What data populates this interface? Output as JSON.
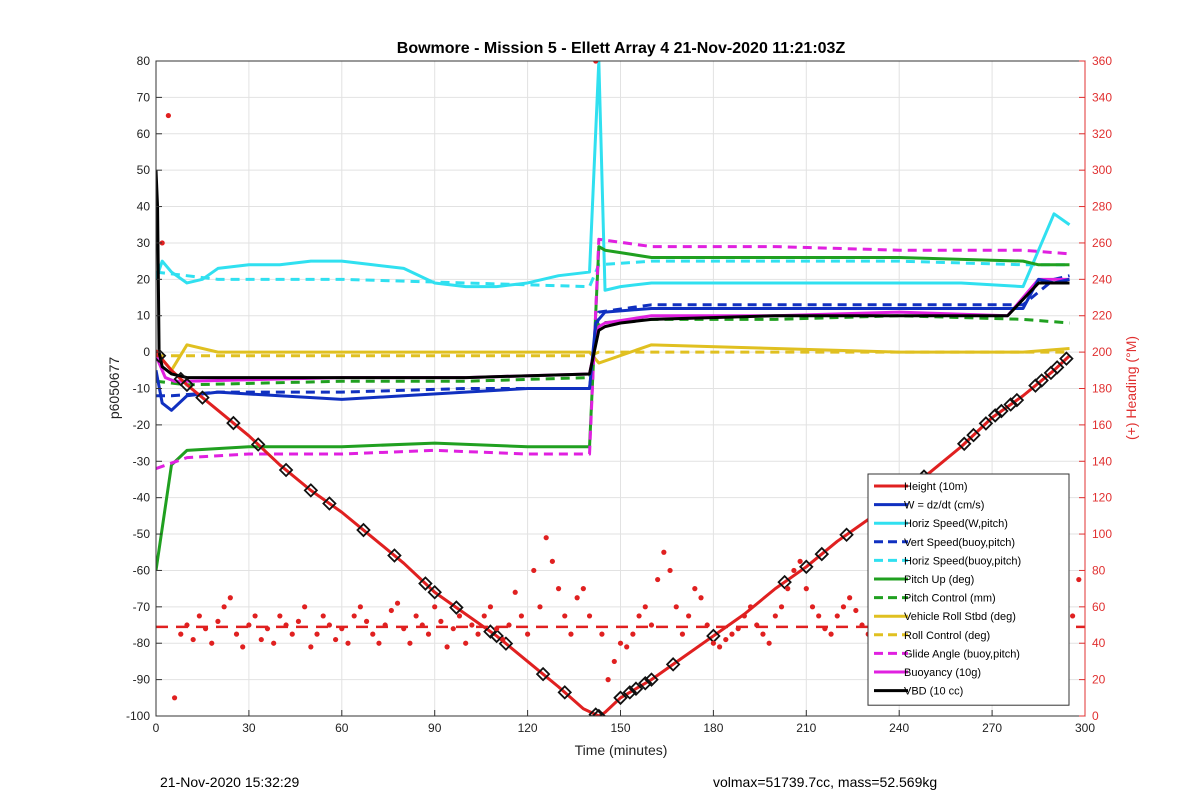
{
  "footer": {
    "timestamp": "21-Nov-2020 15:32:29",
    "stats": "volmax=51739.7cc, mass=52.569kg"
  },
  "chart_data": {
    "type": "line",
    "title": "Bowmore - Mission 5 - Ellett Array 4 21-Nov-2020 11:21:03Z",
    "xlabel": "Time (minutes)",
    "ylabel": "p6050677",
    "y2label": "(+) Heading (°M)",
    "xlim": [
      0,
      300
    ],
    "ylim": [
      -100,
      80
    ],
    "y2lim": [
      0,
      360
    ],
    "xticks": [
      0,
      30,
      60,
      90,
      120,
      150,
      180,
      210,
      240,
      270,
      300
    ],
    "yticks": [
      -100,
      -90,
      -80,
      -70,
      -60,
      -50,
      -40,
      -30,
      -20,
      -10,
      0,
      10,
      20,
      30,
      40,
      50,
      60,
      70,
      80
    ],
    "y2ticks": [
      0,
      20,
      40,
      60,
      80,
      100,
      120,
      140,
      160,
      180,
      200,
      220,
      240,
      260,
      280,
      300,
      320,
      340,
      360
    ],
    "grid": true,
    "legend_position": "lower-right",
    "series": [
      {
        "name": "Height (10m)",
        "color": "#e02020",
        "style": "solid",
        "width": 3,
        "x": [
          0,
          1,
          5,
          10,
          20,
          30,
          40,
          50,
          60,
          70,
          80,
          90,
          100,
          110,
          120,
          130,
          138,
          143,
          145,
          150,
          160,
          170,
          180,
          190,
          200,
          210,
          220,
          230,
          240,
          250,
          260,
          270,
          280,
          290,
          295
        ],
        "y": [
          -1,
          -1,
          -5,
          -9,
          -16,
          -23,
          -31,
          -38,
          -44,
          -51,
          -58,
          -66,
          -72,
          -78,
          -85,
          -92,
          -98,
          -100,
          -99,
          -95,
          -90,
          -84,
          -78,
          -72,
          -65,
          -59,
          -52,
          -46,
          -39,
          -33,
          -26,
          -18,
          -12,
          -5,
          -1
        ]
      },
      {
        "name": "W = dz/dt (cm/s)",
        "color": "#1030c0",
        "style": "solid",
        "width": 3,
        "x": [
          0,
          2,
          5,
          10,
          20,
          40,
          60,
          80,
          100,
          120,
          140,
          142,
          145,
          160,
          180,
          200,
          220,
          240,
          260,
          280,
          285,
          290,
          295
        ],
        "y": [
          -5,
          -14,
          -16,
          -12,
          -11,
          -12,
          -13,
          -12,
          -11,
          -10,
          -10,
          8,
          11,
          12,
          12,
          12,
          12,
          12,
          12,
          12,
          20,
          19,
          20
        ]
      },
      {
        "name": "Horiz Speed(W,pitch)",
        "color": "#30e0f0",
        "style": "solid",
        "width": 3,
        "x": [
          0,
          2,
          5,
          10,
          15,
          20,
          30,
          40,
          50,
          60,
          70,
          80,
          90,
          100,
          110,
          120,
          130,
          140,
          143,
          145,
          150,
          160,
          180,
          200,
          220,
          240,
          260,
          280,
          285,
          290,
          295
        ],
        "y": [
          20,
          25,
          22,
          19,
          20,
          23,
          24,
          24,
          25,
          25,
          24,
          23,
          19,
          18,
          18,
          19,
          21,
          22,
          80,
          17,
          18,
          19,
          19,
          19,
          19,
          19,
          19,
          18,
          28,
          38,
          35
        ]
      },
      {
        "name": "Vert Speed(buoy,pitch)",
        "color": "#1030c0",
        "style": "dashed",
        "width": 3,
        "x": [
          0,
          5,
          20,
          60,
          100,
          140,
          143,
          160,
          200,
          240,
          280,
          290,
          295
        ],
        "y": [
          -12,
          -12,
          -11,
          -11,
          -10,
          -10,
          11,
          13,
          13,
          13,
          13,
          20,
          21
        ]
      },
      {
        "name": "Horiz Speed(buoy,pitch)",
        "color": "#30e0f0",
        "style": "dashed",
        "width": 3,
        "x": [
          0,
          20,
          60,
          100,
          140,
          143,
          160,
          200,
          240,
          280,
          295
        ],
        "y": [
          22,
          20,
          20,
          19,
          18,
          24,
          25,
          25,
          25,
          24,
          24
        ]
      },
      {
        "name": "Pitch Up (deg)",
        "color": "#20a020",
        "style": "solid",
        "width": 3,
        "x": [
          0,
          5,
          10,
          30,
          60,
          90,
          120,
          140,
          143,
          145,
          160,
          200,
          240,
          280,
          285,
          295
        ],
        "y": [
          -60,
          -31,
          -27,
          -26,
          -26,
          -25,
          -26,
          -26,
          29,
          28,
          26,
          26,
          26,
          25,
          24,
          24
        ]
      },
      {
        "name": "Pitch Control (mm)",
        "color": "#20a020",
        "style": "dashed",
        "width": 3,
        "x": [
          0,
          10,
          60,
          100,
          140,
          143,
          160,
          200,
          240,
          280,
          295
        ],
        "y": [
          -8,
          -9,
          -8,
          -8,
          -7,
          8,
          9,
          9,
          10,
          9,
          8
        ]
      },
      {
        "name": "Vehicle Roll Stbd (deg)",
        "color": "#e0c020",
        "style": "solid",
        "width": 3,
        "x": [
          0,
          5,
          10,
          20,
          40,
          60,
          80,
          100,
          120,
          140,
          143,
          160,
          200,
          240,
          280,
          295
        ],
        "y": [
          0,
          -5,
          2,
          0,
          0,
          0,
          0,
          0,
          0,
          0,
          -3,
          2,
          1,
          0,
          0,
          1
        ]
      },
      {
        "name": "Roll Control (deg)",
        "color": "#e0c020",
        "style": "dashed",
        "width": 3,
        "x": [
          0,
          10,
          40,
          80,
          120,
          140,
          143,
          160,
          200,
          240,
          280,
          295
        ],
        "y": [
          -1,
          -1,
          -1,
          -1,
          -1,
          -1,
          0,
          0,
          0,
          0,
          0,
          0
        ]
      },
      {
        "name": "Glide Angle (buoy,pitch)",
        "color": "#e020e0",
        "style": "dashed",
        "width": 3,
        "x": [
          0,
          10,
          30,
          60,
          90,
          120,
          140,
          143,
          160,
          200,
          240,
          280,
          295
        ],
        "y": [
          -32,
          -29,
          -28,
          -28,
          -27,
          -28,
          -28,
          31,
          29,
          29,
          28,
          28,
          27
        ]
      },
      {
        "name": "Buoyancy (10g)",
        "color": "#e020e0",
        "style": "solid",
        "width": 3,
        "x": [
          0,
          3,
          6,
          10,
          60,
          100,
          140,
          143,
          145,
          160,
          200,
          240,
          275,
          285,
          295
        ],
        "y": [
          -1,
          -7,
          -8,
          -8,
          -7,
          -7,
          -6,
          7,
          8,
          10,
          10,
          11,
          10,
          20,
          20
        ]
      },
      {
        "name": "VBD (10 cc)",
        "color": "#000000",
        "style": "solid",
        "width": 3,
        "x": [
          0,
          0.5,
          1,
          2,
          5,
          10,
          60,
          100,
          140,
          143,
          145,
          150,
          160,
          200,
          240,
          275,
          285,
          295
        ],
        "y": [
          50,
          40,
          0,
          -4,
          -6,
          -7,
          -7,
          -7,
          -6,
          6,
          7,
          8,
          9,
          10,
          10,
          10,
          19,
          19
        ]
      }
    ],
    "heading": {
      "name": "(+) Heading (°M)",
      "color": "#e02020",
      "axis": "right",
      "mean": 49,
      "x": [
        0,
        2,
        4,
        6,
        8,
        10,
        12,
        14,
        16,
        18,
        20,
        22,
        24,
        26,
        28,
        30,
        32,
        34,
        36,
        38,
        40,
        42,
        44,
        46,
        48,
        50,
        52,
        54,
        56,
        58,
        60,
        62,
        64,
        66,
        68,
        70,
        72,
        74,
        76,
        78,
        80,
        82,
        84,
        86,
        88,
        90,
        92,
        94,
        96,
        98,
        100,
        102,
        104,
        106,
        108,
        110,
        112,
        114,
        116,
        118,
        120,
        122,
        124,
        126,
        128,
        130,
        132,
        134,
        136,
        138,
        140,
        142,
        144,
        146,
        148,
        150,
        152,
        154,
        156,
        158,
        160,
        162,
        164,
        166,
        168,
        170,
        172,
        174,
        176,
        178,
        180,
        182,
        184,
        186,
        188,
        190,
        192,
        194,
        196,
        198,
        200,
        202,
        204,
        206,
        208,
        210,
        212,
        214,
        216,
        218,
        220,
        222,
        224,
        226,
        228,
        230,
        232,
        234,
        236,
        238,
        240,
        242,
        244,
        246,
        248,
        250,
        252,
        254,
        256,
        258,
        260,
        262,
        264,
        266,
        268,
        270,
        272,
        274,
        276,
        278,
        280,
        282,
        284,
        286,
        288,
        290,
        292,
        294,
        296,
        298
      ],
      "values": [
        200,
        260,
        330,
        10,
        45,
        50,
        42,
        55,
        48,
        40,
        52,
        60,
        65,
        45,
        38,
        50,
        55,
        42,
        48,
        40,
        55,
        50,
        45,
        52,
        60,
        38,
        45,
        55,
        50,
        42,
        48,
        40,
        55,
        60,
        52,
        45,
        40,
        50,
        58,
        62,
        48,
        40,
        55,
        50,
        45,
        60,
        52,
        38,
        48,
        55,
        40,
        50,
        45,
        55,
        60,
        48,
        42,
        50,
        68,
        55,
        45,
        80,
        60,
        98,
        85,
        70,
        55,
        45,
        65,
        70,
        55,
        360,
        45,
        20,
        30,
        40,
        38,
        45,
        55,
        60,
        50,
        75,
        90,
        80,
        60,
        45,
        55,
        70,
        65,
        50,
        40,
        38,
        42,
        45,
        48,
        55,
        60,
        50,
        45,
        40,
        55,
        60,
        70,
        80,
        85,
        70,
        60,
        55,
        48,
        45,
        55,
        60,
        65,
        58,
        50,
        45,
        48,
        55,
        60,
        70,
        52,
        48,
        45,
        55,
        60,
        50,
        45,
        48,
        52,
        55,
        50,
        45,
        48,
        52,
        60,
        55,
        50,
        45,
        38,
        42,
        60,
        55,
        50,
        45,
        65,
        70,
        40,
        48,
        55,
        75
      ]
    },
    "markers": {
      "x": [
        1,
        8,
        10,
        15,
        25,
        33,
        42,
        50,
        56,
        67,
        77,
        87,
        90,
        97,
        108,
        110,
        113,
        125,
        132,
        142,
        143,
        150,
        153,
        155,
        158,
        160,
        167,
        180,
        203,
        210,
        215,
        223,
        237,
        242,
        248,
        261,
        264,
        268,
        271,
        273,
        276,
        278,
        284,
        286,
        289,
        291,
        294
      ]
    }
  }
}
